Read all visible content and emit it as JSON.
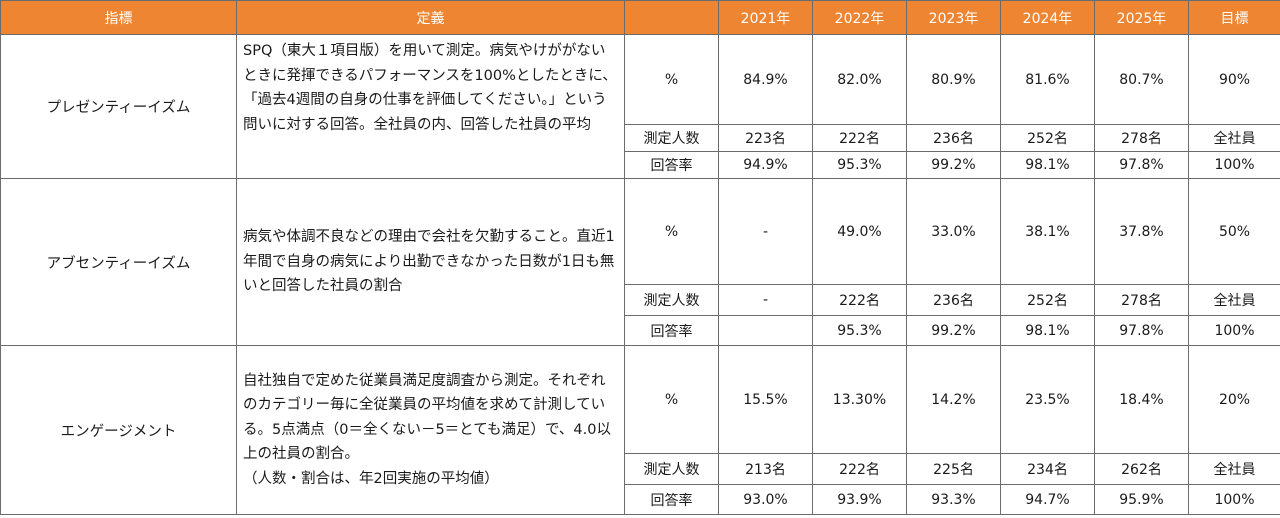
{
  "headers": {
    "indicator": "指標",
    "definition": "定義",
    "metric": "",
    "y2021": "2021年",
    "y2022": "2022年",
    "y2023": "2023年",
    "y2024": "2024年",
    "y2025": "2025年",
    "target": "目標"
  },
  "colors": {
    "header_bg": "#ee8533",
    "border": "#6b6b6b"
  },
  "groups": [
    {
      "indicator": "プレゼンティーイズム",
      "definition": "SPQ（東大１項目版）を用いて測定。病気やけががないときに発揮できるパフォーマンスを100%としたときに、「過去4週間の自身の仕事を評価してください。」という問いに対する回答。全社員の内、回答した社員の平均",
      "rows": [
        {
          "metric": "%",
          "y2021": "84.9%",
          "y2022": "82.0%",
          "y2023": "80.9%",
          "y2024": "81.6%",
          "y2025": "80.7%",
          "target": "90%"
        },
        {
          "metric": "測定人数",
          "y2021": "223名",
          "y2022": "222名",
          "y2023": "236名",
          "y2024": "252名",
          "y2025": "278名",
          "target": "全社員"
        },
        {
          "metric": "回答率",
          "y2021": "94.9%",
          "y2022": "95.3%",
          "y2023": "99.2%",
          "y2024": "98.1%",
          "y2025": "97.8%",
          "target": "100%"
        }
      ]
    },
    {
      "indicator": "アブセンティーイズム",
      "definition": "病気や体調不良などの理由で会社を欠勤すること。直近1年間で自身の病気により出勤できなかった日数が1日も無いと回答した社員の割合",
      "rows": [
        {
          "metric": "%",
          "y2021": "-",
          "y2022": "49.0%",
          "y2023": "33.0%",
          "y2024": "38.1%",
          "y2025": "37.8%",
          "target": "50%"
        },
        {
          "metric": "測定人数",
          "y2021": "-",
          "y2022": "222名",
          "y2023": "236名",
          "y2024": "252名",
          "y2025": "278名",
          "target": "全社員"
        },
        {
          "metric": "回答率",
          "y2021": "",
          "y2022": "95.3%",
          "y2023": "99.2%",
          "y2024": "98.1%",
          "y2025": "97.8%",
          "target": "100%"
        }
      ]
    },
    {
      "indicator": "エンゲージメント",
      "definition": "自社独自で定めた従業員満足度調査から測定。それぞれのカテゴリー毎に全従業員の平均値を求めて計測している。5点満点（0＝全くない－5＝とても満足）で、4.0以上の社員の割合。\n（人数・割合は、年2回実施の平均値）",
      "rows": [
        {
          "metric": "%",
          "y2021": "15.5%",
          "y2022": "13.30%",
          "y2023": "14.2%",
          "y2024": "23.5%",
          "y2025": "18.4%",
          "target": "20%"
        },
        {
          "metric": "測定人数",
          "y2021": "213名",
          "y2022": "222名",
          "y2023": "225名",
          "y2024": "234名",
          "y2025": "262名",
          "target": "全社員"
        },
        {
          "metric": "回答率",
          "y2021": "93.0%",
          "y2022": "93.9%",
          "y2023": "93.3%",
          "y2024": "94.7%",
          "y2025": "95.9%",
          "target": "100%"
        }
      ]
    }
  ]
}
